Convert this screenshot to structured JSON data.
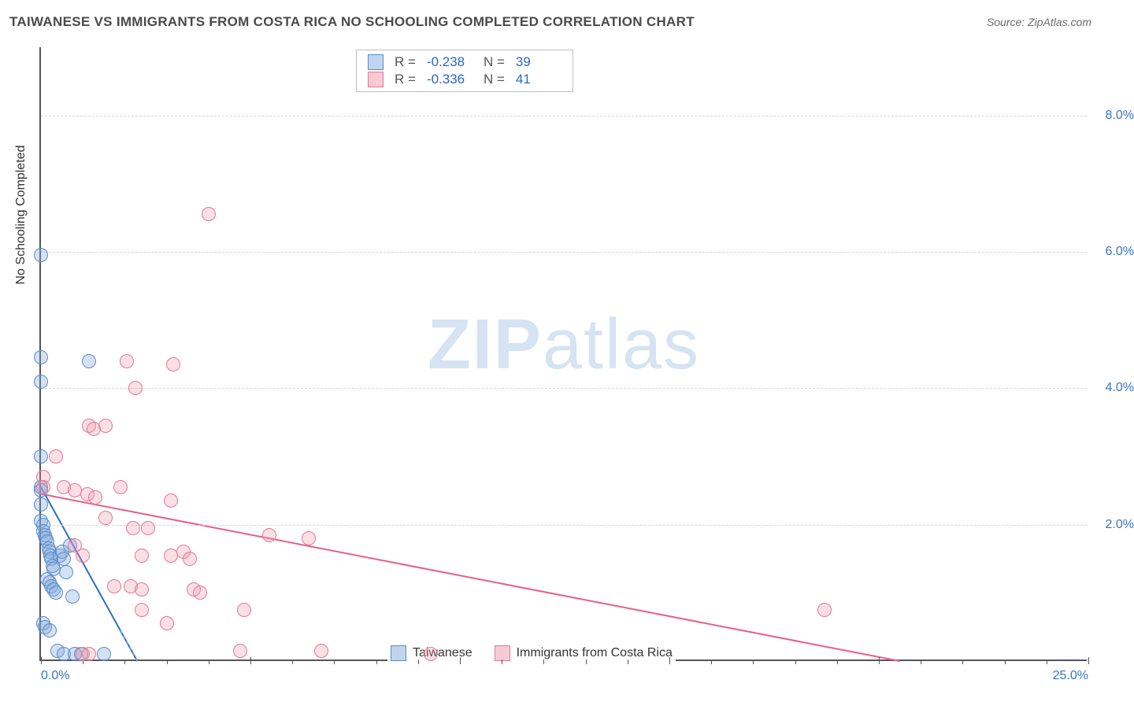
{
  "title": "TAIWANESE VS IMMIGRANTS FROM COSTA RICA NO SCHOOLING COMPLETED CORRELATION CHART",
  "source": "Source: ZipAtlas.com",
  "watermark": {
    "bold": "ZIP",
    "rest": "atlas"
  },
  "y_axis_label": "No Schooling Completed",
  "chart": {
    "type": "scatter",
    "xlim": [
      0,
      25
    ],
    "ylim": [
      0,
      9
    ],
    "x_ticks": [
      0,
      5,
      10,
      15,
      20,
      25
    ],
    "x_tick_labels": [
      "0.0%",
      "",
      "",
      "",
      "",
      "25.0%"
    ],
    "y_ticks": [
      2,
      4,
      6,
      8
    ],
    "y_tick_labels": [
      "2.0%",
      "4.0%",
      "6.0%",
      "8.0%"
    ],
    "minor_x_ticks": [
      1,
      2,
      3,
      4,
      6,
      7,
      8,
      9,
      11,
      12,
      13,
      14,
      16,
      17,
      18,
      19,
      21,
      22,
      23,
      24
    ],
    "grid_color": "#d8d8d8",
    "axis_color": "#555555",
    "tick_label_color": "#3b74c6",
    "tick_label_fontsize": 16,
    "background_color": "#ffffff",
    "marker_radius": 9
  },
  "series": [
    {
      "name": "Taiwanese",
      "fill": "rgba(130,170,220,0.35)",
      "stroke": "#5a8cc9",
      "R": "-0.238",
      "N": "39",
      "trend": {
        "x1": 0.0,
        "y1": 2.55,
        "x2": 2.3,
        "y2": 0.0,
        "color": "#2e6dc4"
      },
      "points": [
        [
          0.0,
          5.95
        ],
        [
          0.0,
          4.45
        ],
        [
          0.0,
          4.1
        ],
        [
          0.0,
          3.0
        ],
        [
          0.0,
          2.55
        ],
        [
          0.0,
          2.5
        ],
        [
          0.0,
          2.3
        ],
        [
          0.0,
          2.05
        ],
        [
          0.05,
          2.0
        ],
        [
          0.05,
          1.9
        ],
        [
          0.1,
          1.85
        ],
        [
          0.12,
          1.8
        ],
        [
          0.15,
          1.75
        ],
        [
          0.18,
          1.65
        ],
        [
          0.2,
          1.6
        ],
        [
          0.22,
          1.55
        ],
        [
          0.25,
          1.5
        ],
        [
          0.28,
          1.4
        ],
        [
          0.3,
          1.35
        ],
        [
          0.15,
          1.2
        ],
        [
          0.2,
          1.15
        ],
        [
          0.25,
          1.1
        ],
        [
          0.3,
          1.05
        ],
        [
          0.35,
          1.0
        ],
        [
          0.45,
          1.55
        ],
        [
          0.5,
          1.6
        ],
        [
          0.55,
          1.5
        ],
        [
          0.6,
          1.3
        ],
        [
          0.7,
          1.7
        ],
        [
          0.75,
          0.95
        ],
        [
          0.05,
          0.55
        ],
        [
          0.1,
          0.5
        ],
        [
          0.2,
          0.45
        ],
        [
          0.4,
          0.15
        ],
        [
          0.55,
          0.1
        ],
        [
          0.8,
          0.1
        ],
        [
          0.95,
          0.1
        ],
        [
          1.5,
          0.1
        ],
        [
          1.15,
          4.4
        ]
      ]
    },
    {
      "name": "Immigrants from Costa Rica",
      "fill": "rgba(240,150,170,0.30)",
      "stroke": "#e27a96",
      "R": "-0.336",
      "N": "41",
      "trend": {
        "x1": 0.0,
        "y1": 2.45,
        "x2": 20.5,
        "y2": 0.0,
        "color": "#e85f87"
      },
      "points": [
        [
          4.0,
          6.55
        ],
        [
          2.05,
          4.4
        ],
        [
          3.15,
          4.35
        ],
        [
          2.25,
          4.0
        ],
        [
          1.15,
          3.45
        ],
        [
          1.25,
          3.4
        ],
        [
          1.55,
          3.45
        ],
        [
          0.05,
          2.7
        ],
        [
          0.05,
          2.55
        ],
        [
          0.55,
          2.55
        ],
        [
          0.8,
          2.5
        ],
        [
          1.1,
          2.45
        ],
        [
          1.3,
          2.4
        ],
        [
          1.9,
          2.55
        ],
        [
          3.1,
          2.35
        ],
        [
          1.55,
          2.1
        ],
        [
          2.2,
          1.95
        ],
        [
          2.55,
          1.95
        ],
        [
          5.45,
          1.85
        ],
        [
          6.4,
          1.8
        ],
        [
          2.4,
          1.55
        ],
        [
          3.1,
          1.55
        ],
        [
          3.4,
          1.6
        ],
        [
          3.55,
          1.5
        ],
        [
          1.75,
          1.1
        ],
        [
          2.15,
          1.1
        ],
        [
          2.4,
          1.05
        ],
        [
          3.65,
          1.05
        ],
        [
          3.8,
          1.0
        ],
        [
          4.85,
          0.75
        ],
        [
          2.4,
          0.75
        ],
        [
          3.0,
          0.55
        ],
        [
          4.75,
          0.15
        ],
        [
          6.7,
          0.15
        ],
        [
          9.3,
          0.1
        ],
        [
          1.0,
          0.1
        ],
        [
          1.15,
          0.1
        ],
        [
          18.7,
          0.75
        ],
        [
          0.35,
          3.0
        ],
        [
          0.8,
          1.7
        ],
        [
          1.0,
          1.55
        ]
      ]
    }
  ],
  "stats_legend": {
    "r_label": "R =",
    "n_label": "N ="
  },
  "bottom_legend_labels": [
    "Taiwanese",
    "Immigrants from Costa Rica"
  ]
}
